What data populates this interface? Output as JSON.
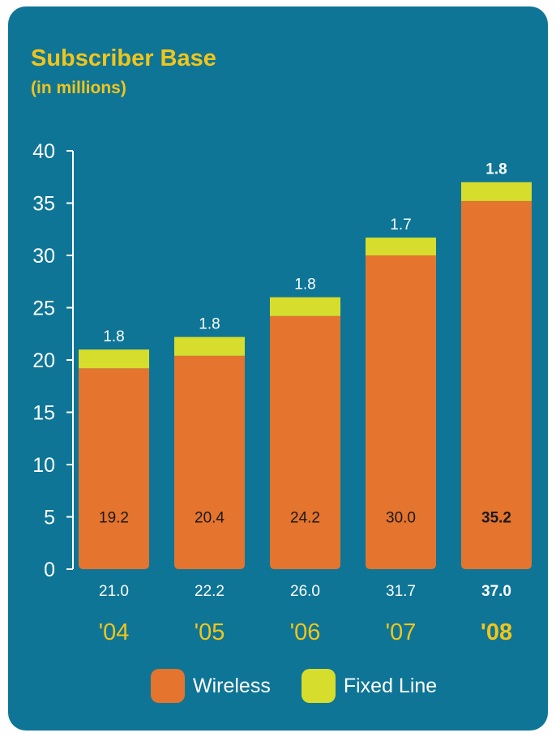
{
  "title": "Subscriber Base",
  "subtitle": "(in millions)",
  "colors": {
    "background": "#0e7596",
    "wireless": "#e4742e",
    "fixed_line": "#d7dd2c",
    "title": "#f2c51a",
    "year_label": "#f2c51a",
    "text": "#ffffff"
  },
  "legend": [
    {
      "label": "Wireless",
      "color": "#e4742e"
    },
    {
      "label": "Fixed Line",
      "color": "#d7dd2c"
    }
  ],
  "chart_data": {
    "type": "bar",
    "stacked": true,
    "title": "Subscriber Base",
    "subtitle": "(in millions)",
    "categories": [
      "'04",
      "'05",
      "'06",
      "'07",
      "'08"
    ],
    "series": [
      {
        "name": "Wireless",
        "values": [
          19.2,
          20.4,
          24.2,
          30.0,
          35.2
        ]
      },
      {
        "name": "Fixed Line",
        "values": [
          1.8,
          1.8,
          1.8,
          1.7,
          1.8
        ]
      }
    ],
    "totals": [
      21.0,
      22.2,
      26.0,
      31.7,
      37.0
    ],
    "wireless_labels": [
      "19.2",
      "20.4",
      "24.2",
      "30.0",
      "35.2"
    ],
    "fixed_labels": [
      "1.8",
      "1.8",
      "1.8",
      "1.7",
      "1.8"
    ],
    "total_labels": [
      "21.0",
      "22.2",
      "26.0",
      "31.7",
      "37.0"
    ],
    "highlight_index": 4,
    "yticks": [
      0,
      5,
      10,
      15,
      20,
      25,
      30,
      35,
      40
    ],
    "ylim": [
      0,
      40
    ],
    "xlabel": "",
    "ylabel": "",
    "grid": false,
    "legend_position": "bottom"
  }
}
